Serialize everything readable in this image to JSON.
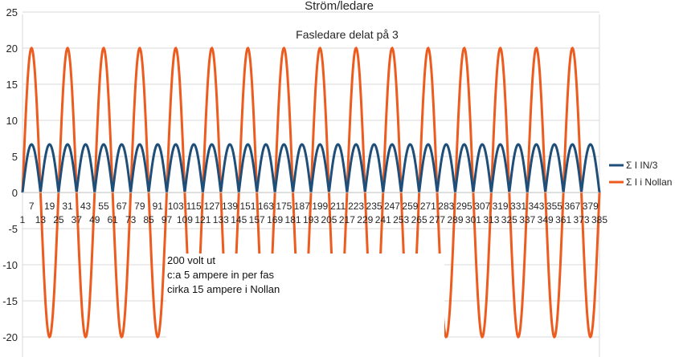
{
  "chart_data": {
    "type": "line",
    "title": "Ström/ledare",
    "subtitle": "Fasledare delat på 3",
    "xlabel": "",
    "ylabel": "",
    "ylim": [
      -22,
      25
    ],
    "yticks": [
      -20,
      -15,
      -10,
      -5,
      0,
      5,
      10,
      15,
      20,
      25
    ],
    "grid": true,
    "legend_position": "right",
    "x_tick_labels_odd": [
      1,
      13,
      25,
      37,
      49,
      61,
      73,
      85,
      97,
      109,
      121,
      133,
      145,
      157,
      169,
      181,
      193,
      205,
      217,
      229,
      241,
      253,
      265,
      277,
      289,
      301,
      313,
      325,
      337,
      349,
      361,
      373,
      385
    ],
    "x_tick_labels_even": [
      7,
      19,
      31,
      43,
      55,
      67,
      79,
      91,
      103,
      115,
      127,
      139,
      151,
      163,
      175,
      187,
      199,
      211,
      223,
      235,
      247,
      259,
      271,
      283,
      295,
      307,
      319,
      331,
      343,
      355,
      367,
      379
    ],
    "x_range": [
      1,
      385
    ],
    "series": [
      {
        "name": "Σ I IN/3",
        "color": "#1f4e79",
        "shape": "rectified sine (|sin|)",
        "amplitude": 6.67,
        "half_periods": 32
      },
      {
        "name": "Σ I i Nollan",
        "color": "#ed5b1f",
        "shape": "sine",
        "amplitude": 20,
        "periods": 16
      }
    ]
  },
  "annotation": {
    "lines": [
      "200 volt ut",
      "c:a 5 ampere in per fas",
      "cirka 15 ampere i Nollan"
    ]
  }
}
